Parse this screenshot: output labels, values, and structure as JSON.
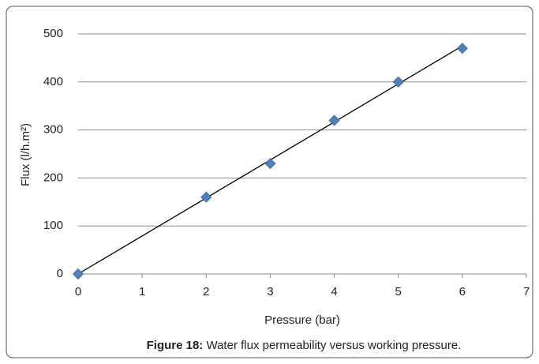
{
  "chart_data": {
    "type": "scatter",
    "x_label": "Pressure (bar)",
    "y_label": "Flux (l/h.m²)",
    "caption_label": "Figure 18:",
    "caption_text": "Water flux permeability versus working pressure.",
    "series": [
      {
        "color": "#4f81bd",
        "x": [
          0,
          2,
          3,
          4,
          5,
          6
        ],
        "values": [
          0,
          160,
          230,
          320,
          400,
          470
        ]
      }
    ],
    "trendline": {
      "color": "#000000",
      "x": [
        0,
        6
      ],
      "values": [
        0,
        475
      ]
    },
    "xlim": [
      0,
      7
    ],
    "xticks": [
      0,
      1,
      2,
      3,
      4,
      5,
      6,
      7
    ],
    "ylim": [
      0,
      500
    ],
    "yticks": [
      0,
      100,
      200,
      300,
      400,
      500
    ],
    "grid": true
  }
}
